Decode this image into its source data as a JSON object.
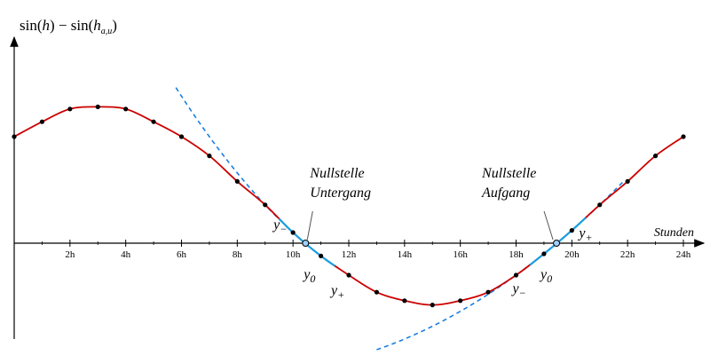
{
  "chart_data": {
    "type": "line",
    "ylabel": "sin(h) − sin(h_{a,u})",
    "ylabel_parts": {
      "pre": "sin(",
      "h1": "h",
      "mid": ") − sin(",
      "h2": "h",
      "sub": "a,u",
      "post": ")"
    },
    "xlabel": "Stunden",
    "xlim": [
      0,
      24.5
    ],
    "ylim": [
      -0.62,
      1.32
    ],
    "xticks": [
      "2h",
      "4h",
      "6h",
      "8h",
      "10h",
      "12h",
      "14h",
      "16h",
      "18h",
      "20h",
      "22h",
      "24h"
    ],
    "xtick_values": [
      2,
      4,
      6,
      8,
      10,
      12,
      14,
      16,
      18,
      20,
      22,
      24
    ],
    "grid": false,
    "colors": {
      "curve": "#cc0000",
      "highlight": "#1a9fe0",
      "parabola": "#1a7fe0",
      "points": "#000000"
    },
    "series": [
      {
        "x": [
          0,
          1,
          2,
          3,
          4,
          5,
          6,
          7,
          8,
          9,
          10,
          11,
          12,
          13,
          14,
          15,
          16,
          17,
          18,
          19,
          20,
          21,
          22,
          23,
          24
        ],
        "y": [
          0.5,
          0.57,
          0.63,
          0.64,
          0.63,
          0.57,
          0.5,
          0.41,
          0.29,
          0.18,
          0.05,
          -0.06,
          -0.15,
          -0.23,
          -0.27,
          -0.29,
          -0.27,
          -0.23,
          -0.15,
          -0.05,
          0.06,
          0.18,
          0.29,
          0.41,
          0.5
        ]
      }
    ],
    "highlight_segments": [
      [
        9.5,
        11.5
      ],
      [
        18.5,
        20.5
      ]
    ],
    "parabolas": [
      {
        "x_range": [
          5.8,
          10.6
        ],
        "through": [
          [
            9,
            0.18
          ],
          [
            10,
            0.05
          ],
          [
            11,
            -0.06
          ]
        ]
      },
      {
        "x_range": [
          13.0,
          21.9
        ],
        "through": [
          [
            18,
            -0.15
          ],
          [
            19,
            -0.05
          ],
          [
            20,
            0.06
          ]
        ]
      }
    ],
    "zeros": [
      {
        "x": 10.45,
        "label": [
          "Nullstelle",
          "Untergang"
        ]
      },
      {
        "x": 19.45,
        "label": [
          "Nullstelle",
          "Aufgang"
        ]
      }
    ],
    "point_labels": [
      {
        "main": "y",
        "sub": "−"
      },
      {
        "main": "y",
        "sub": "0"
      },
      {
        "main": "y",
        "sub": "+"
      },
      {
        "main": "y",
        "sub": "−"
      },
      {
        "main": "y",
        "sub": "0"
      },
      {
        "main": "y",
        "sub": "+"
      }
    ]
  }
}
